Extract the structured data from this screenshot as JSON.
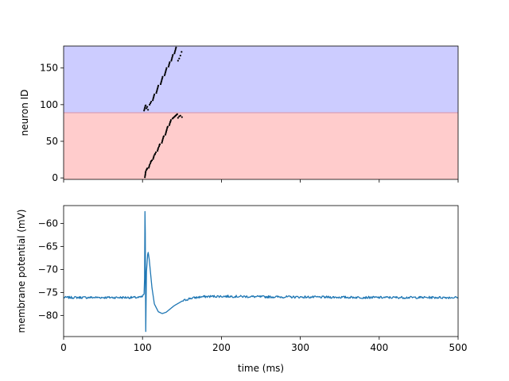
{
  "chart_data": [
    {
      "type": "scatter",
      "xlim": [
        0,
        500
      ],
      "ylim": [
        -2,
        180
      ],
      "xticks": [
        0,
        100,
        200,
        300,
        400,
        500
      ],
      "show_xtick_labels": false,
      "yticks": [
        0,
        50,
        100,
        150
      ],
      "ytick_labels": [
        "0",
        "50",
        "100",
        "150"
      ],
      "ylabel": "neuron ID",
      "grid": false,
      "bands": [
        {
          "y_from": -2,
          "y_to": 89,
          "color": "#ffcccc"
        },
        {
          "y_from": 89,
          "y_to": 180,
          "color": "#ccccff"
        }
      ],
      "boundary_line": {
        "y": 89,
        "color": "#d9a0b8"
      },
      "spike_color": "#000000",
      "spikes": [
        [
          103.0,
          1
        ],
        [
          103.3,
          3
        ],
        [
          103.6,
          5
        ],
        [
          103.8,
          7
        ],
        [
          104.1,
          9
        ],
        [
          105.0,
          11
        ],
        [
          105.5,
          12
        ],
        [
          106.0,
          13
        ],
        [
          108.0,
          14
        ],
        [
          108.5,
          16
        ],
        [
          109.0,
          18
        ],
        [
          110.0,
          20
        ],
        [
          110.5,
          22
        ],
        [
          111.0,
          23
        ],
        [
          112.0,
          24
        ],
        [
          113.5,
          26
        ],
        [
          114.0,
          28
        ],
        [
          114.5,
          30
        ],
        [
          115.5,
          32
        ],
        [
          116.0,
          33
        ],
        [
          117.0,
          35
        ],
        [
          119.0,
          37
        ],
        [
          119.5,
          39
        ],
        [
          120.0,
          41
        ],
        [
          121.0,
          43
        ],
        [
          121.5,
          45
        ],
        [
          122.0,
          46
        ],
        [
          124.5,
          48
        ],
        [
          125.0,
          50
        ],
        [
          125.5,
          52
        ],
        [
          126.0,
          54
        ],
        [
          126.5,
          56
        ],
        [
          127.0,
          57
        ],
        [
          129.0,
          59
        ],
        [
          129.5,
          61
        ],
        [
          130.0,
          63
        ],
        [
          130.5,
          65
        ],
        [
          131.0,
          67
        ],
        [
          131.5,
          69
        ],
        [
          132.0,
          70
        ],
        [
          134.0,
          72
        ],
        [
          134.5,
          74
        ],
        [
          135.0,
          76
        ],
        [
          135.5,
          77
        ],
        [
          136.0,
          79
        ],
        [
          138.0,
          81
        ],
        [
          139.0,
          82
        ],
        [
          140.0,
          83
        ],
        [
          141.0,
          84
        ],
        [
          142.0,
          85
        ],
        [
          143.0,
          86
        ],
        [
          144.0,
          87
        ],
        [
          145.0,
          82
        ],
        [
          146.5,
          84
        ],
        [
          148.0,
          85
        ],
        [
          150.0,
          83
        ],
        [
          102.0,
          92
        ],
        [
          102.5,
          94
        ],
        [
          103.0,
          96
        ],
        [
          103.5,
          98
        ],
        [
          104.0,
          99
        ],
        [
          105.0,
          95
        ],
        [
          106.0,
          97
        ],
        [
          107.0,
          93
        ],
        [
          109.0,
          100
        ],
        [
          110.0,
          102
        ],
        [
          111.0,
          104
        ],
        [
          113.0,
          106
        ],
        [
          113.5,
          108
        ],
        [
          114.0,
          110
        ],
        [
          114.5,
          112
        ],
        [
          115.0,
          114
        ],
        [
          117.5,
          116
        ],
        [
          118.0,
          118
        ],
        [
          118.5,
          120
        ],
        [
          119.0,
          122
        ],
        [
          119.5,
          124
        ],
        [
          120.0,
          126
        ],
        [
          123.0,
          128
        ],
        [
          123.5,
          130
        ],
        [
          124.0,
          132
        ],
        [
          124.5,
          134
        ],
        [
          125.0,
          136
        ],
        [
          125.5,
          138
        ],
        [
          128.0,
          140
        ],
        [
          128.5,
          142
        ],
        [
          129.0,
          144
        ],
        [
          129.5,
          146
        ],
        [
          130.0,
          148
        ],
        [
          130.5,
          150
        ],
        [
          133.0,
          152
        ],
        [
          133.5,
          154
        ],
        [
          134.0,
          156
        ],
        [
          134.5,
          158
        ],
        [
          136.5,
          160
        ],
        [
          137.0,
          162
        ],
        [
          137.5,
          164
        ],
        [
          138.0,
          166
        ],
        [
          138.5,
          168
        ],
        [
          140.5,
          170
        ],
        [
          141.0,
          172
        ],
        [
          141.5,
          174
        ],
        [
          142.0,
          176
        ],
        [
          142.5,
          178
        ],
        [
          145.0,
          160
        ],
        [
          146.5,
          163
        ],
        [
          148.0,
          167
        ],
        [
          149.5,
          172
        ]
      ]
    },
    {
      "type": "line",
      "xlim": [
        0,
        500
      ],
      "ylim": [
        -84.6,
        -56.1
      ],
      "xticks": [
        0,
        100,
        200,
        300,
        400,
        500
      ],
      "xtick_labels": [
        "0",
        "100",
        "200",
        "300",
        "400",
        "500"
      ],
      "yticks": [
        -60,
        -65,
        -70,
        -75,
        -80
      ],
      "ytick_labels": [
        "−60",
        "−65",
        "−70",
        "−75",
        "−80"
      ],
      "xlabel": "time (ms)",
      "ylabel": "membrane potential (mV)",
      "grid": false,
      "series_color": "#1f77b4",
      "baseline": -76.1,
      "noise": 0.25,
      "points": [
        [
          0,
          -76.1
        ],
        [
          96,
          -76.1
        ],
        [
          100,
          -75.9
        ],
        [
          102,
          -75.3
        ],
        [
          102.6,
          -72.0
        ],
        [
          103.1,
          -57.4
        ],
        [
          103.5,
          -62.0
        ],
        [
          103.8,
          -75.0
        ],
        [
          104.1,
          -83.5
        ],
        [
          104.5,
          -77.5
        ],
        [
          105.0,
          -70.5
        ],
        [
          106.5,
          -66.8
        ],
        [
          107.2,
          -66.3
        ],
        [
          108.5,
          -67.8
        ],
        [
          110.0,
          -70.5
        ],
        [
          112.0,
          -74.0
        ],
        [
          115.0,
          -77.5
        ],
        [
          120.0,
          -79.2
        ],
        [
          125.0,
          -79.6
        ],
        [
          130.0,
          -79.3
        ],
        [
          135.0,
          -78.6
        ],
        [
          140.0,
          -77.9
        ],
        [
          150.0,
          -76.9
        ],
        [
          160.0,
          -76.3
        ],
        [
          175.0,
          -75.95
        ],
        [
          190.0,
          -75.85
        ],
        [
          210.0,
          -75.85
        ],
        [
          250.0,
          -75.95
        ],
        [
          300.0,
          -76.0
        ],
        [
          350.0,
          -76.05
        ],
        [
          400.0,
          -76.1
        ],
        [
          450.0,
          -76.1
        ],
        [
          500.0,
          -76.1
        ]
      ]
    }
  ]
}
